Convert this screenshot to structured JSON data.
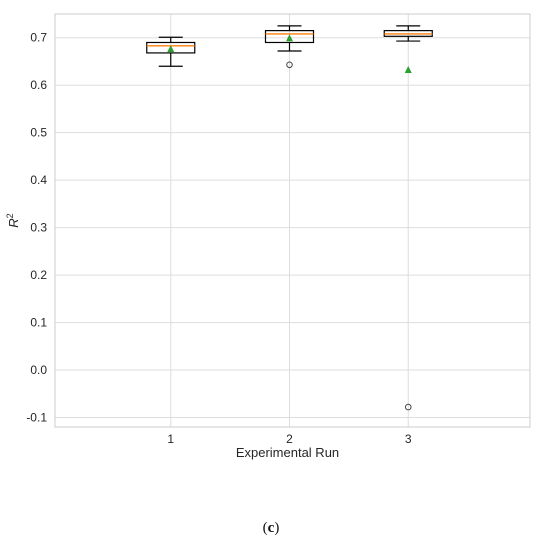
{
  "chart_data": {
    "type": "box",
    "xlabel": "Experimental Run",
    "ylabel": "R",
    "ylabel_superscript": "2",
    "ylim": [
      -0.12,
      0.75
    ],
    "yticks": [
      "0.7",
      "0.6",
      "0.5",
      "0.4",
      "0.3",
      "0.2",
      "0.1",
      "0.0",
      "-0.1"
    ],
    "ytick_values": [
      0.7,
      0.6,
      0.5,
      0.4,
      0.3,
      0.2,
      0.1,
      0.0,
      -0.1
    ],
    "categories": [
      "1",
      "2",
      "3"
    ],
    "boxes": [
      {
        "category": "1",
        "whisker_low": 0.64,
        "q1": 0.668,
        "median": 0.683,
        "q3": 0.69,
        "whisker_high": 0.701,
        "mean": 0.676,
        "outliers": []
      },
      {
        "category": "2",
        "whisker_low": 0.672,
        "q1": 0.69,
        "median": 0.708,
        "q3": 0.715,
        "whisker_high": 0.725,
        "mean": 0.699,
        "outliers": [
          0.643
        ]
      },
      {
        "category": "3",
        "whisker_low": 0.693,
        "q1": 0.703,
        "median": 0.708,
        "q3": 0.715,
        "whisker_high": 0.725,
        "mean": 0.632,
        "outliers": [
          -0.078
        ]
      }
    ],
    "grid": true,
    "colors": {
      "box": "#000000",
      "median": "#ff7f0e",
      "mean": "#2ca02c",
      "grid": "#dddddd",
      "frame": "#cccccc"
    }
  },
  "panel_label": "c",
  "panel_open": "(",
  "panel_close": ")"
}
